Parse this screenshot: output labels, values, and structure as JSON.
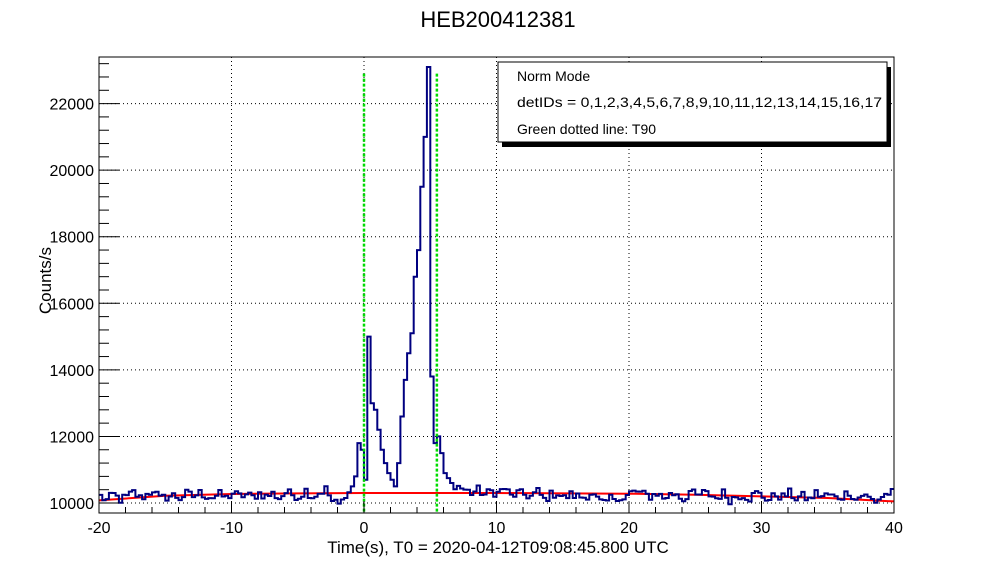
{
  "chart_data": {
    "type": "line",
    "title": "HEB200412381",
    "xlabel": "Time(s), T0 = 2020-04-12T09:08:45.800 UTC",
    "ylabel": "Counts/s",
    "xlim": [
      -20,
      40
    ],
    "ylim": [
      9700,
      23400
    ],
    "x_ticks": [
      -20,
      -10,
      0,
      10,
      20,
      30,
      40
    ],
    "y_ticks": [
      10000,
      12000,
      14000,
      16000,
      18000,
      20000,
      22000
    ],
    "grid": true,
    "legend": {
      "position": "top-right",
      "entries": [
        "Norm Mode",
        "detIDs = 0,1,2,3,4,5,6,7,8,9,10,11,12,13,14,15,16,17",
        "Green dotted line: T90"
      ]
    },
    "colors": {
      "lightcurve": "#000080",
      "background_fit": "#ff0000",
      "t90_lines": "#00dd00"
    },
    "t90": [
      0.0,
      5.5
    ],
    "bin_width": 0.25,
    "lightcurve": {
      "name": "",
      "points": [
        [
          -20.0,
          10200
        ],
        [
          -19.5,
          10080
        ],
        [
          -19.0,
          10250
        ],
        [
          -18.5,
          10100
        ],
        [
          -18.0,
          10180
        ],
        [
          -17.5,
          10320
        ],
        [
          -17.0,
          10150
        ],
        [
          -16.5,
          10250
        ],
        [
          -16.0,
          10400
        ],
        [
          -15.5,
          10120
        ],
        [
          -15.0,
          10180
        ],
        [
          -14.5,
          10230
        ],
        [
          -14.0,
          10150
        ],
        [
          -13.5,
          10280
        ],
        [
          -13.0,
          10200
        ],
        [
          -12.5,
          10300
        ],
        [
          -12.0,
          10220
        ],
        [
          -11.5,
          10180
        ],
        [
          -11.0,
          10260
        ],
        [
          -10.5,
          10150
        ],
        [
          -10.0,
          10300
        ],
        [
          -9.5,
          10200
        ],
        [
          -9.0,
          10250
        ],
        [
          -8.5,
          10180
        ],
        [
          -8.0,
          10300
        ],
        [
          -7.5,
          10200
        ],
        [
          -7.0,
          10280
        ],
        [
          -6.5,
          10150
        ],
        [
          -6.0,
          10320
        ],
        [
          -5.5,
          10250
        ],
        [
          -5.0,
          10200
        ],
        [
          -4.5,
          10380
        ],
        [
          -4.0,
          10200
        ],
        [
          -3.5,
          10300
        ],
        [
          -3.0,
          10420
        ],
        [
          -2.5,
          10050
        ],
        [
          -2.0,
          9950
        ],
        [
          -1.5,
          10150
        ],
        [
          -1.0,
          10500
        ],
        [
          -0.75,
          10800
        ],
        [
          -0.5,
          11800
        ],
        [
          -0.25,
          11600
        ],
        [
          0.0,
          10700
        ],
        [
          0.25,
          15000
        ],
        [
          0.5,
          13000
        ],
        [
          0.75,
          12800
        ],
        [
          1.0,
          12200
        ],
        [
          1.25,
          11600
        ],
        [
          1.5,
          11200
        ],
        [
          1.75,
          10900
        ],
        [
          2.0,
          10700
        ],
        [
          2.25,
          10500
        ],
        [
          2.5,
          11200
        ],
        [
          2.75,
          12600
        ],
        [
          3.0,
          13700
        ],
        [
          3.25,
          14500
        ],
        [
          3.5,
          15100
        ],
        [
          3.75,
          16800
        ],
        [
          4.0,
          17600
        ],
        [
          4.25,
          19500
        ],
        [
          4.5,
          21000
        ],
        [
          4.75,
          23100
        ],
        [
          5.0,
          13800
        ],
        [
          5.25,
          11800
        ],
        [
          5.5,
          12000
        ],
        [
          5.75,
          11500
        ],
        [
          6.0,
          10900
        ],
        [
          6.5,
          10600
        ],
        [
          7.0,
          10500
        ],
        [
          7.5,
          10400
        ],
        [
          8.0,
          10300
        ],
        [
          8.5,
          10400
        ],
        [
          9.0,
          10250
        ],
        [
          9.5,
          10350
        ],
        [
          10.0,
          10300
        ],
        [
          10.5,
          10450
        ],
        [
          11.0,
          10200
        ],
        [
          11.5,
          10300
        ],
        [
          12.0,
          10250
        ],
        [
          12.5,
          10200
        ],
        [
          13.0,
          10350
        ],
        [
          13.5,
          10100
        ],
        [
          14.0,
          10250
        ],
        [
          14.5,
          10300
        ],
        [
          15.0,
          10150
        ],
        [
          15.5,
          10250
        ],
        [
          16.0,
          10200
        ],
        [
          16.5,
          10180
        ],
        [
          17.0,
          10300
        ],
        [
          17.5,
          10100
        ],
        [
          18.0,
          9950
        ],
        [
          18.5,
          10150
        ],
        [
          19.0,
          10200
        ],
        [
          19.5,
          10100
        ],
        [
          20.0,
          10300
        ],
        [
          20.5,
          10350
        ],
        [
          21.0,
          10250
        ],
        [
          21.5,
          10200
        ],
        [
          22.0,
          10300
        ],
        [
          22.5,
          10150
        ],
        [
          23.0,
          10250
        ],
        [
          23.5,
          10300
        ],
        [
          24.0,
          10100
        ],
        [
          24.5,
          10350
        ],
        [
          25.0,
          10200
        ],
        [
          25.5,
          10300
        ],
        [
          26.0,
          10250
        ],
        [
          26.5,
          10150
        ],
        [
          27.0,
          10300
        ],
        [
          27.5,
          10100
        ],
        [
          28.0,
          10200
        ],
        [
          28.5,
          10250
        ],
        [
          29.0,
          10150
        ],
        [
          29.5,
          10300
        ],
        [
          30.0,
          10200
        ],
        [
          30.5,
          10100
        ],
        [
          31.0,
          10250
        ],
        [
          31.5,
          10180
        ],
        [
          32.0,
          10300
        ],
        [
          32.5,
          10150
        ],
        [
          33.0,
          10200
        ],
        [
          33.5,
          10100
        ],
        [
          34.0,
          10300
        ],
        [
          34.5,
          10200
        ],
        [
          35.0,
          10250
        ],
        [
          35.5,
          10150
        ],
        [
          36.0,
          10200
        ],
        [
          36.5,
          10350
        ],
        [
          37.0,
          10100
        ],
        [
          37.5,
          10250
        ],
        [
          38.0,
          10150
        ],
        [
          38.5,
          10050
        ],
        [
          39.0,
          10200
        ],
        [
          39.5,
          10300
        ]
      ]
    },
    "background_fit": {
      "name": "",
      "points": [
        [
          -20,
          10080
        ],
        [
          -15,
          10220
        ],
        [
          -10,
          10270
        ],
        [
          -5,
          10290
        ],
        [
          0,
          10300
        ],
        [
          10,
          10300
        ],
        [
          20,
          10280
        ],
        [
          25,
          10250
        ],
        [
          30,
          10200
        ],
        [
          35,
          10150
        ],
        [
          40,
          10050
        ]
      ]
    }
  }
}
